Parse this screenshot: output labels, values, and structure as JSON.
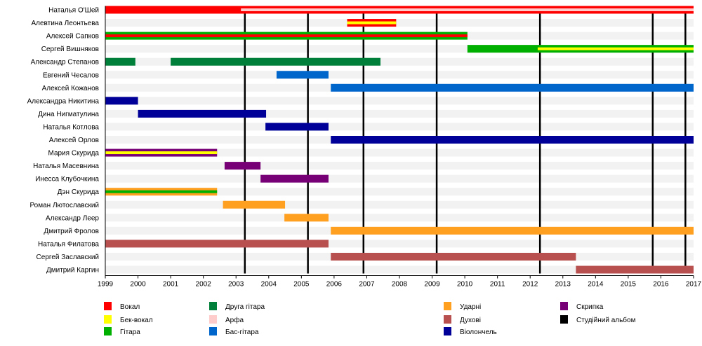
{
  "chart_data": {
    "type": "timeline",
    "title": "",
    "xlabel": "",
    "ylabel": "",
    "xlim": [
      1999,
      2017
    ],
    "x_ticks": [
      "1999",
      "2000",
      "2001",
      "2002",
      "2003",
      "2004",
      "2005",
      "2006",
      "2007",
      "2008",
      "2009",
      "2010",
      "2011",
      "2012",
      "2013",
      "2014",
      "2015",
      "2016",
      "2017"
    ],
    "colors": {
      "vocal": "#ff0000",
      "backing_vocal": "#ffff00",
      "guitar": "#00b000",
      "second_guitar": "#007f3a",
      "harp": "#ffcccc",
      "bass": "#0066cc",
      "percussion": "#ffa020",
      "winds": "#b85050",
      "cello": "#000099",
      "violin": "#770077",
      "album": "#000000"
    },
    "legend": [
      {
        "key": "vocal",
        "label": "Вокал"
      },
      {
        "key": "backing_vocal",
        "label": "Бек-вокал"
      },
      {
        "key": "guitar",
        "label": "Гітара"
      },
      {
        "key": "second_guitar",
        "label": "Друга гітара"
      },
      {
        "key": "harp",
        "label": "Арфа"
      },
      {
        "key": "bass",
        "label": "Бас-гітара"
      },
      {
        "key": "percussion",
        "label": "Ударні"
      },
      {
        "key": "winds",
        "label": "Духові"
      },
      {
        "key": "cello",
        "label": "Віолончель"
      },
      {
        "key": "violin",
        "label": "Скрипка"
      },
      {
        "key": "album",
        "label": "Студійний альбом"
      }
    ],
    "albums": [
      2003.27,
      2005.2,
      2006.9,
      2009.14,
      2012.3,
      2015.75,
      2016.75
    ],
    "members": [
      {
        "name": "Наталья О'Шей",
        "bars": [
          {
            "from": 1999,
            "to": 2017,
            "role": "vocal"
          }
        ],
        "inner": [
          {
            "from": 2003.15,
            "to": 2017,
            "role": "harp"
          }
        ]
      },
      {
        "name": "Алевтина Леонтьева",
        "bars": [
          {
            "from": 2006.4,
            "to": 2007.9,
            "role": "vocal"
          }
        ],
        "inner": [
          {
            "from": 2006.4,
            "to": 2007.9,
            "role": "backing_vocal"
          }
        ]
      },
      {
        "name": "Алексей Сапков",
        "bars": [
          {
            "from": 1999,
            "to": 2010.08,
            "role": "guitar"
          }
        ],
        "inner": [
          {
            "from": 1999,
            "to": 2010.08,
            "role": "vocal"
          }
        ]
      },
      {
        "name": "Сергей Вишняков",
        "bars": [
          {
            "from": 2010.08,
            "to": 2017,
            "role": "guitar"
          }
        ],
        "inner": [
          {
            "from": 2012.23,
            "to": 2017,
            "role": "backing_vocal"
          }
        ]
      },
      {
        "name": "Александр Степанов",
        "bars": [
          {
            "from": 1999,
            "to": 1999.92,
            "role": "second_guitar"
          },
          {
            "from": 2001.0,
            "to": 2007.42,
            "role": "second_guitar"
          }
        ],
        "inner": []
      },
      {
        "name": "Евгений Чесалов",
        "bars": [
          {
            "from": 2004.24,
            "to": 2005.83,
            "role": "bass"
          }
        ],
        "inner": []
      },
      {
        "name": "Алексей Кожанов",
        "bars": [
          {
            "from": 2005.9,
            "to": 2017,
            "role": "bass"
          }
        ],
        "inner": []
      },
      {
        "name": "Александра Никитина",
        "bars": [
          {
            "from": 1999,
            "to": 2000.0,
            "role": "cello"
          }
        ],
        "inner": []
      },
      {
        "name": "Дина Нигматулина",
        "bars": [
          {
            "from": 2000.0,
            "to": 2003.92,
            "role": "cello"
          }
        ],
        "inner": []
      },
      {
        "name": "Наталья Котлова",
        "bars": [
          {
            "from": 2003.9,
            "to": 2005.83,
            "role": "cello"
          }
        ],
        "inner": []
      },
      {
        "name": "Алексей Орлов",
        "bars": [
          {
            "from": 2005.9,
            "to": 2017,
            "role": "cello"
          }
        ],
        "inner": []
      },
      {
        "name": "Мария Скурида",
        "bars": [
          {
            "from": 1999,
            "to": 2002.42,
            "role": "violin"
          }
        ],
        "inner": [
          {
            "from": 1999,
            "to": 2002.42,
            "role": "backing_vocal"
          }
        ]
      },
      {
        "name": "Наталья Масевнина",
        "bars": [
          {
            "from": 2002.65,
            "to": 2003.75,
            "role": "violin"
          }
        ],
        "inner": []
      },
      {
        "name": "Инесса Клубочкина",
        "bars": [
          {
            "from": 2003.75,
            "to": 2005.83,
            "role": "violin"
          }
        ],
        "inner": []
      },
      {
        "name": "Дэн Скурида",
        "bars": [
          {
            "from": 1999,
            "to": 2002.42,
            "role": "percussion"
          }
        ],
        "inner": [
          {
            "from": 1999,
            "to": 2002.42,
            "role": "guitar"
          }
        ]
      },
      {
        "name": "Роман Лютославский",
        "bars": [
          {
            "from": 2002.6,
            "to": 2004.5,
            "role": "percussion"
          }
        ],
        "inner": []
      },
      {
        "name": "Александр Леер",
        "bars": [
          {
            "from": 2004.48,
            "to": 2005.83,
            "role": "percussion"
          }
        ],
        "inner": []
      },
      {
        "name": "Дмитрий Фролов",
        "bars": [
          {
            "from": 2005.9,
            "to": 2017,
            "role": "percussion"
          }
        ],
        "inner": []
      },
      {
        "name": "Наталья Филатова",
        "bars": [
          {
            "from": 1999,
            "to": 2005.83,
            "role": "winds"
          }
        ],
        "inner": []
      },
      {
        "name": "Сергей Заславский",
        "bars": [
          {
            "from": 2005.9,
            "to": 2013.4,
            "role": "winds"
          }
        ],
        "inner": []
      },
      {
        "name": "Дмитрий Каргин",
        "bars": [
          {
            "from": 2013.4,
            "to": 2017,
            "role": "winds"
          }
        ],
        "inner": []
      }
    ]
  }
}
